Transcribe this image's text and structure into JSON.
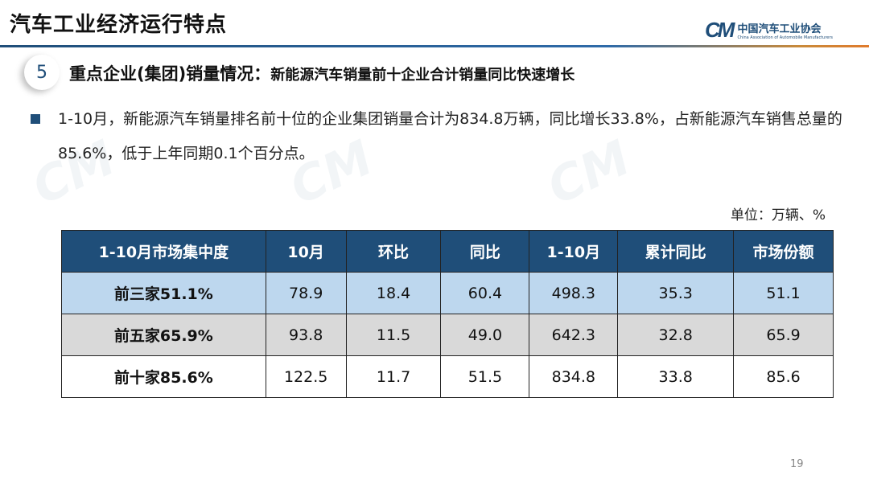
{
  "header": {
    "title": "汽车工业经济运行特点",
    "logo_cn": "中国汽车工业协会",
    "logo_en": "China Association of Automobile Manufacturers",
    "logo_mark": "CM"
  },
  "section": {
    "number": "5",
    "heading": "重点企业(集团)销量情况：",
    "subheading": "新能源汽车销量前十企业合计销量同比快速增长"
  },
  "bullet": "1-10月，新能源汽车销量排名前十位的企业集团销量合计为834.8万辆，同比增长33.8%，占新能源汽车销售总量的85.6%，低于上年同期0.1个百分点。",
  "unit": "单位：万辆、%",
  "table": {
    "headers": [
      "1-10月市场集中度",
      "10月",
      "环比",
      "同比",
      "1-10月",
      "累计同比",
      "市场份额"
    ],
    "rows": [
      [
        "前三家51.1%",
        "78.9",
        "18.4",
        "60.4",
        "498.3",
        "35.3",
        "51.1"
      ],
      [
        "前五家65.9%",
        "93.8",
        "11.5",
        "49.0",
        "642.3",
        "32.8",
        "65.9"
      ],
      [
        "前十家85.6%",
        "122.5",
        "11.7",
        "51.5",
        "834.8",
        "33.8",
        "85.6"
      ]
    ]
  },
  "page_number": "19",
  "colors": {
    "brand": "#1f4e79",
    "row1": "#bdd7ee",
    "row2": "#d9d9d9"
  }
}
